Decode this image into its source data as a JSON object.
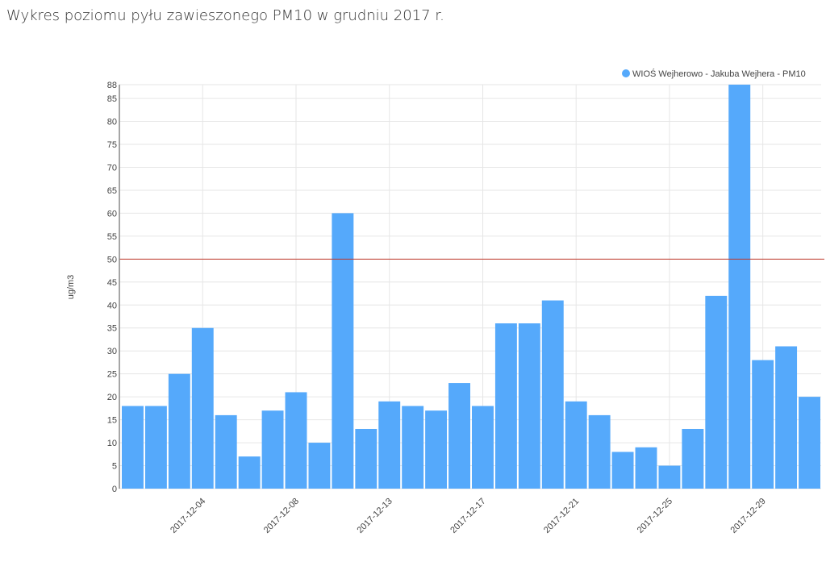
{
  "page": {
    "title": "Wykres poziomu pyłu zawieszonego PM10 w grudniu 2017 r."
  },
  "chart_data": {
    "type": "bar",
    "title": "Wykres poziomu pyłu zawieszonego PM10 w grudniu 2017 r.",
    "xlabel": "",
    "ylabel": "ug/m3",
    "ylim": [
      0,
      88
    ],
    "yticks": [
      0,
      5,
      10,
      15,
      20,
      25,
      30,
      35,
      40,
      45,
      50,
      55,
      60,
      65,
      70,
      75,
      80,
      85,
      88
    ],
    "xtick_labels": [
      {
        "bar_index": 3,
        "label": "2017-12-04"
      },
      {
        "bar_index": 7,
        "label": "2017-12-08"
      },
      {
        "bar_index": 11,
        "label": "2017-12-13"
      },
      {
        "bar_index": 15,
        "label": "2017-12-17"
      },
      {
        "bar_index": 19,
        "label": "2017-12-21"
      },
      {
        "bar_index": 23,
        "label": "2017-12-25"
      },
      {
        "bar_index": 27,
        "label": "2017-12-29"
      }
    ],
    "series": [
      {
        "name": "WIOŚ Wejherowo - Jakuba Wejhera - PM10",
        "color": "#55a9fb",
        "values": [
          18,
          18,
          25,
          35,
          16,
          7,
          17,
          21,
          10,
          60,
          13,
          19,
          18,
          17,
          23,
          18,
          36,
          36,
          41,
          19,
          16,
          8,
          9,
          5,
          13,
          42,
          88,
          28,
          31,
          20
        ]
      }
    ],
    "threshold": {
      "value": 50,
      "color": "#c0392b"
    },
    "legend": "top-right",
    "grid": true
  }
}
